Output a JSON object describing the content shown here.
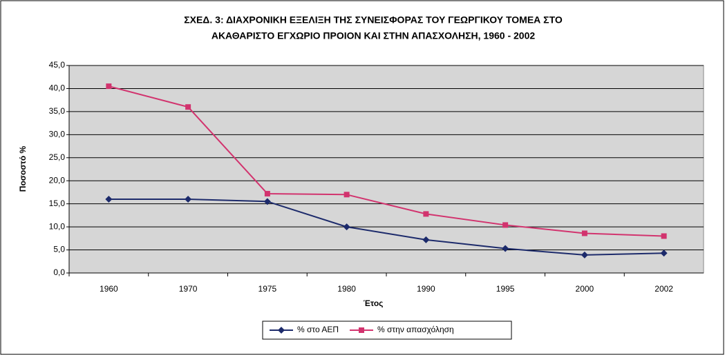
{
  "chart_data": {
    "type": "line",
    "title": [
      "ΣΧΕΔ. 3: ΔΙΑΧΡΟΝΙΚΗ ΕΞΕΛΙΞΗ ΤΗΣ ΣΥΝΕΙΣΦΟΡΑΣ ΤΟΥ ΓΕΩΡΓΙΚΟΥ ΤΟΜΕΑ ΣΤΟ",
      "ΑΚΑΘΑΡΙΣΤΟ ΕΓΧΩΡΙΟ ΠΡΟΙΟΝ ΚΑΙ ΣΤΗΝ ΑΠΑΣΧΟΛΗΣΗ, 1960 - 2002"
    ],
    "x_label": "Έτος",
    "y_label": "Ποσοστό %",
    "categories": [
      "1960",
      "1970",
      "1975",
      "1980",
      "1990",
      "1995",
      "2000",
      "2002"
    ],
    "series": [
      {
        "name": "% στο ΑΕΠ",
        "color": "#1c2a6b",
        "marker": "diamond",
        "values": [
          16.0,
          16.0,
          15.5,
          10.0,
          7.2,
          5.3,
          3.9,
          4.3
        ]
      },
      {
        "name": "% στην απασχόληση",
        "color": "#d2336e",
        "marker": "square",
        "values": [
          40.5,
          36.0,
          17.2,
          17.0,
          12.8,
          10.4,
          8.6,
          8.0
        ]
      }
    ],
    "ylim": [
      0,
      45
    ],
    "yticks": [
      {
        "value": 0,
        "label": "0,0"
      },
      {
        "value": 5,
        "label": "5,0"
      },
      {
        "value": 10,
        "label": "10,0"
      },
      {
        "value": 15,
        "label": "15,0"
      },
      {
        "value": 20,
        "label": "20,0"
      },
      {
        "value": 25,
        "label": "25,0"
      },
      {
        "value": 30,
        "label": "30,0"
      },
      {
        "value": 35,
        "label": "35,0"
      },
      {
        "value": 40,
        "label": "40,0"
      },
      {
        "value": 45,
        "label": "45,0"
      }
    ],
    "grid": true,
    "legend": "bottom"
  }
}
